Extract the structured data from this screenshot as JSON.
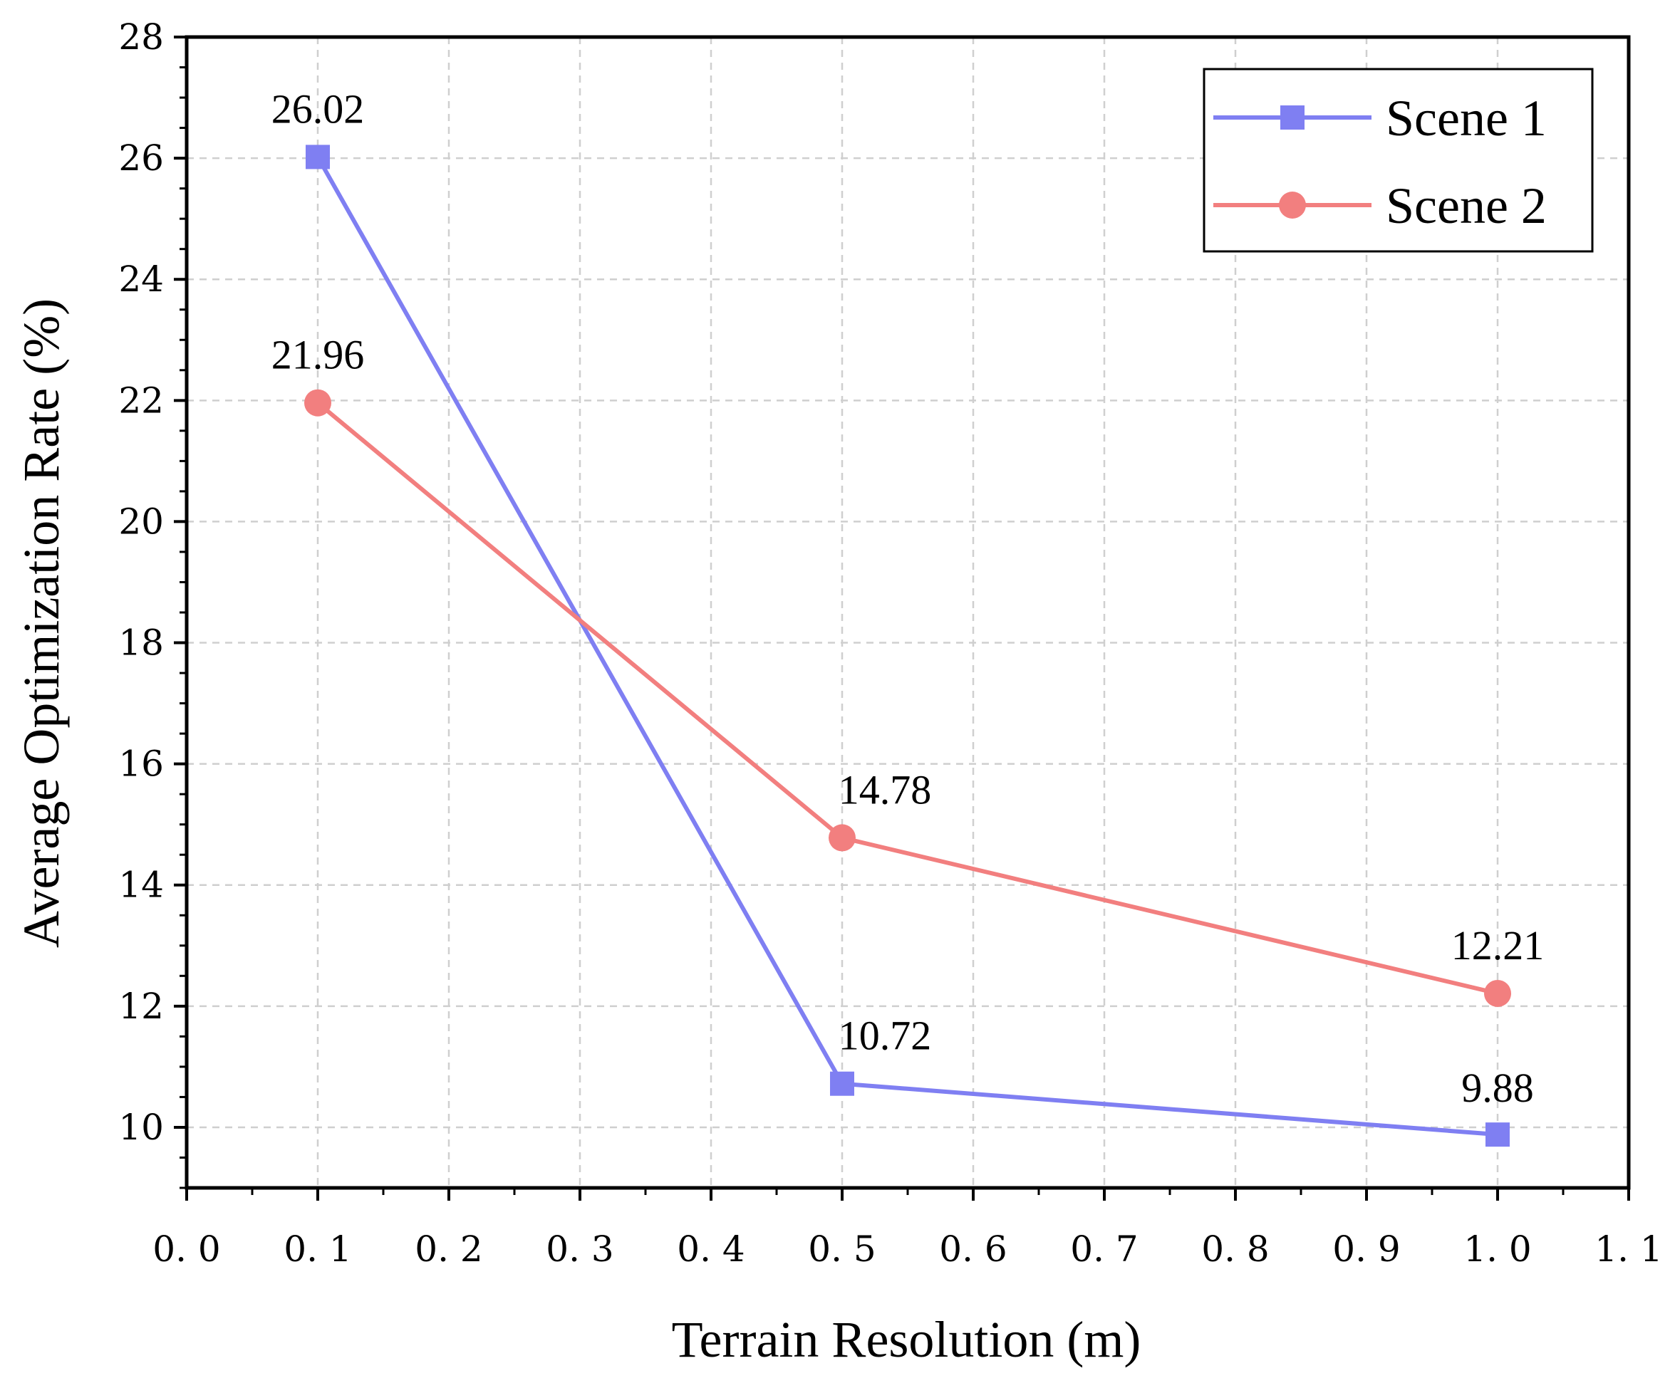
{
  "chart_data": {
    "type": "line",
    "title": "",
    "xlabel": "Terrain Resolution (m)",
    "ylabel": "Average Optimization Rate (%)",
    "xlim": [
      0.0,
      1.1
    ],
    "ylim": [
      9,
      28
    ],
    "xticks": [
      0.0,
      0.1,
      0.2,
      0.3,
      0.4,
      0.5,
      0.6,
      0.7,
      0.8,
      0.9,
      1.0,
      1.1
    ],
    "xtick_labels": [
      "0. 0",
      "0. 1",
      "0. 2",
      "0. 3",
      "0. 4",
      "0. 5",
      "0. 6",
      "0. 7",
      "0. 8",
      "0. 9",
      "1. 0",
      "1. 1"
    ],
    "yticks": [
      10,
      12,
      14,
      16,
      18,
      20,
      22,
      24,
      26,
      28
    ],
    "ytick_labels": [
      "10",
      "12",
      "14",
      "16",
      "18",
      "20",
      "22",
      "24",
      "26",
      "28"
    ],
    "grid": true,
    "legend_position": "top-right",
    "x": [
      0.1,
      0.5,
      1.0
    ],
    "series": [
      {
        "name": "Scene 1",
        "color": "#7f7ff2",
        "marker": "square",
        "values": [
          26.02,
          10.72,
          9.88
        ],
        "labels": [
          "26.02",
          "10.72",
          "9.88"
        ]
      },
      {
        "name": "Scene 2",
        "color": "#f27f7f",
        "marker": "circle",
        "values": [
          21.96,
          14.78,
          12.21
        ],
        "labels": [
          "21.96",
          "14.78",
          "12.21"
        ]
      }
    ]
  }
}
